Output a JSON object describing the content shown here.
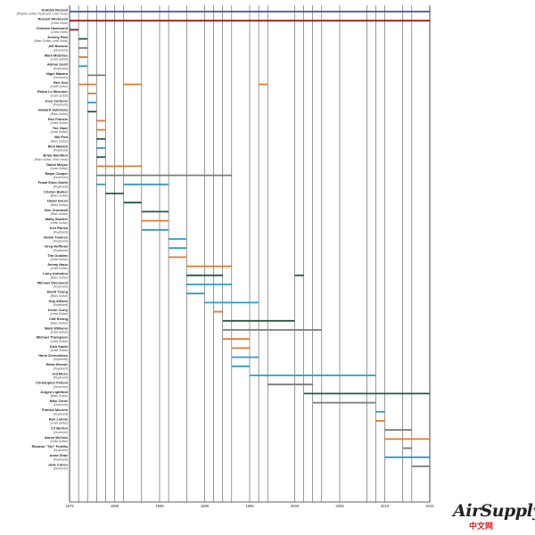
{
  "chart_data": {
    "type": "timeline",
    "x_range": [
      1975,
      2015
    ],
    "x_ticks": [
      "1975",
      "1980",
      "1985",
      "1990",
      "1995",
      "2000",
      "2005",
      "2010",
      "2015"
    ],
    "members": [
      {
        "name": "Graham Russell",
        "role": "(Rhythm Guitar, Keyboard, Lead Vocal)",
        "color": "#3a56a8",
        "spans": [
          [
            1975,
            2015
          ]
        ]
      },
      {
        "name": "Russell Hitchcock",
        "role": "(Lead Vocal)",
        "color": "#9b1b1b",
        "spans": [
          [
            1975,
            2015
          ]
        ]
      },
      {
        "name": "Chrissie Hammond",
        "role": "(Lead Vocal)",
        "color": "#9b1b1b",
        "spans": [
          [
            1975,
            1976
          ]
        ]
      },
      {
        "name": "Jeremy Paul",
        "role": "(Bass Guitar, Lead Vocal)",
        "color": "#1f5c3e",
        "spans": [
          [
            1976,
            1977
          ]
        ]
      },
      {
        "name": "Jeff Browne",
        "role": "(Drummer)",
        "color": "#7a7a7a",
        "spans": [
          [
            1976,
            1977
          ]
        ]
      },
      {
        "name": "Mark McEntee",
        "role": "(Lead Guitar)",
        "color": "#e07a2e",
        "spans": [
          [
            1976,
            1977
          ]
        ]
      },
      {
        "name": "Adrian Scott",
        "role": "(Keyboard)",
        "color": "#2f9ac9",
        "spans": [
          [
            1976,
            1977
          ]
        ]
      },
      {
        "name": "Nigel Macara",
        "role": "(Drummer)",
        "color": "#7a7a7a",
        "spans": [
          [
            1977,
            1979
          ]
        ]
      },
      {
        "name": "Rex Goh",
        "role": "(Lead Guitar)",
        "color": "#e07a2e",
        "spans": [
          [
            1976,
            1978
          ],
          [
            1981,
            1983
          ],
          [
            1996,
            1997
          ]
        ]
      },
      {
        "name": "Robin Le Mesurier",
        "role": "(Lead Guitar)",
        "color": "#e07a2e",
        "spans": [
          [
            1977,
            1978
          ]
        ]
      },
      {
        "name": "Joey Carbone",
        "role": "(Keyboard)",
        "color": "#2f9ac9",
        "spans": [
          [
            1977,
            1978
          ]
        ]
      },
      {
        "name": "Howard Sukimoto",
        "role": "(Bass Guitar)",
        "color": "#1f5c3e",
        "spans": [
          [
            1977,
            1978
          ]
        ]
      },
      {
        "name": "Rex Francis",
        "role": "(Lead Guitar)",
        "color": "#e07a2e",
        "spans": [
          [
            1978,
            1979
          ]
        ]
      },
      {
        "name": "Tim Gaze",
        "role": "(Lead Guitar)",
        "color": "#e07a2e",
        "spans": [
          [
            1978,
            1979
          ]
        ]
      },
      {
        "name": "Bill Putt",
        "role": "(Bass Guitar)",
        "color": "#1f5c3e",
        "spans": [
          [
            1978,
            1979
          ]
        ]
      },
      {
        "name": "Rick Mallick",
        "role": "(Keyboard)",
        "color": "#2f9ac9",
        "spans": [
          [
            1978,
            1979
          ]
        ]
      },
      {
        "name": "Brian Hamilton",
        "role": "(Bass Guitar, Lead Vocal)",
        "color": "#1f5c3e",
        "spans": [
          [
            1978,
            1979
          ]
        ]
      },
      {
        "name": "David Moyse",
        "role": "(Lead Guitar)",
        "color": "#e07a2e",
        "spans": [
          [
            1978,
            1983
          ]
        ]
      },
      {
        "name": "Ralph Cooper",
        "role": "(Drummer)",
        "color": "#7a7a7a",
        "spans": [
          [
            1978,
            1993
          ]
        ]
      },
      {
        "name": "Frank Esler-Smith",
        "role": "(Keyboard)",
        "color": "#2f9ac9",
        "spans": [
          [
            1978,
            1979
          ],
          [
            1981,
            1986
          ]
        ]
      },
      {
        "name": "Criston Barker",
        "role": "(Bass Guitar)",
        "color": "#1f5c3e",
        "spans": [
          [
            1979,
            1981
          ]
        ]
      },
      {
        "name": "David Green",
        "role": "(Bass Guitar)",
        "color": "#1f5c3e",
        "spans": [
          [
            1981,
            1983
          ]
        ]
      },
      {
        "name": "Don Cromwell",
        "role": "(Bass Guitar)",
        "color": "#1f5c3e",
        "spans": [
          [
            1983,
            1986
          ]
        ]
      },
      {
        "name": "Wally Stocker",
        "role": "(Lead Guitar)",
        "color": "#e07a2e",
        "spans": [
          [
            1983,
            1986
          ]
        ]
      },
      {
        "name": "Ken Rarick",
        "role": "(Keyboard)",
        "color": "#2f9ac9",
        "spans": [
          [
            1983,
            1986
          ]
        ]
      },
      {
        "name": "Robin Tuemen",
        "role": "(Keyboard)",
        "color": "#2f9ac9",
        "spans": [
          [
            1986,
            1988
          ]
        ]
      },
      {
        "name": "Greg Hoffman",
        "role": "(Keyboard)",
        "color": "#2f9ac9",
        "spans": [
          [
            1986,
            1988
          ]
        ]
      },
      {
        "name": "Tim Goddim",
        "role": "(Lead Guitar)",
        "color": "#e07a2e",
        "spans": [
          [
            1986,
            1988
          ]
        ]
      },
      {
        "name": "Jimmy Haun",
        "role": "(Lead Guitar)",
        "color": "#e07a2e",
        "spans": [
          [
            1988,
            1993
          ]
        ]
      },
      {
        "name": "Larry Antonino",
        "role": "(Bass Guitar)",
        "color": "#1f5c3e",
        "spans": [
          [
            1988,
            1992
          ],
          [
            2000,
            2001
          ]
        ]
      },
      {
        "name": "Michael Sherwood",
        "role": "(Keyboard)",
        "color": "#2f9ac9",
        "spans": [
          [
            1988,
            1993
          ]
        ]
      },
      {
        "name": "David Young",
        "role": "(Bass Guitar)",
        "color": "#2f9ac9",
        "spans": [
          [
            1988,
            1990
          ]
        ]
      },
      {
        "name": "Guy Allison",
        "role": "(Keyboard)",
        "color": "#2f9ac9",
        "spans": [
          [
            1990,
            1996
          ]
        ]
      },
      {
        "name": "Kevin Curry",
        "role": "(Lead Guitar)",
        "color": "#e07a2e",
        "spans": [
          [
            1991,
            1992
          ]
        ]
      },
      {
        "name": "Cliff Rehrig",
        "role": "(Bass Guitar)",
        "color": "#1f5c3e",
        "spans": [
          [
            1992,
            2000
          ]
        ]
      },
      {
        "name": "Mark Williams",
        "role": "(Lead Guitar)",
        "color": "#7a7a7a",
        "spans": [
          [
            1992,
            2003
          ]
        ]
      },
      {
        "name": "Michael Thompson",
        "role": "(Lead Guitar)",
        "color": "#e07a2e",
        "spans": [
          [
            1992,
            1995
          ]
        ]
      },
      {
        "name": "Dick Smith",
        "role": "(Lead Guitar)",
        "color": "#e07a2e",
        "spans": [
          [
            1993,
            1995
          ]
        ]
      },
      {
        "name": "Hans Zermuehlen",
        "role": "(Keyboard)",
        "color": "#2f9ac9",
        "spans": [
          [
            1993,
            1996
          ]
        ]
      },
      {
        "name": "Brian Becvar",
        "role": "(Keyboard)",
        "color": "#2f9ac9",
        "spans": [
          [
            1993,
            1995
          ]
        ]
      },
      {
        "name": "Jed Moss",
        "role": "(Keyboard)",
        "color": "#2f9ac9",
        "spans": [
          [
            1995,
            2009
          ]
        ]
      },
      {
        "name": "Christopher Pelloni",
        "role": "(Drummer)",
        "color": "#7a7a7a",
        "spans": [
          [
            1997,
            2002
          ]
        ]
      },
      {
        "name": "Jorgen Lightfoot",
        "role": "(Bass Guitar)",
        "color": "#1f5c3e",
        "spans": [
          [
            2001,
            2010
          ],
          [
            2010,
            2015
          ]
        ]
      },
      {
        "name": "Mike Zerbe",
        "role": "(Drummer)",
        "color": "#7a7a7a",
        "spans": [
          [
            2002,
            2009
          ]
        ]
      },
      {
        "name": "Frankie Moreno",
        "role": "(Keyboard)",
        "color": "#2f9ac9",
        "spans": [
          [
            2009,
            2010
          ]
        ]
      },
      {
        "name": "Ron Lehnie",
        "role": "(Lead Guitar)",
        "color": "#e07a2e",
        "spans": [
          [
            2009,
            2010
          ]
        ]
      },
      {
        "name": "CJ Burton",
        "role": "(Drummer)",
        "color": "#7a7a7a",
        "spans": [
          [
            2010,
            2013
          ]
        ]
      },
      {
        "name": "Aaron McCain",
        "role": "(Lead Guitar)",
        "color": "#e07a2e",
        "spans": [
          [
            2010,
            2015
          ]
        ]
      },
      {
        "name": "Ricardo \"Tiki\" Portillo",
        "role": "(Drummer)",
        "color": "#7a7a7a",
        "spans": [
          [
            2012,
            2013
          ]
        ]
      },
      {
        "name": "Anna Ghaz",
        "role": "(Keyboard)",
        "color": "#2f9ac9",
        "spans": [
          [
            2010,
            2015
          ]
        ]
      },
      {
        "name": "Jude Cohen",
        "role": "(Drummer)",
        "color": "#7a7a7a",
        "spans": [
          [
            2013,
            2015
          ]
        ]
      }
    ],
    "grid_years": [
      1976,
      1977,
      1978,
      1979,
      1981,
      1983,
      1986,
      1988,
      1990,
      1991,
      1992,
      1993,
      1995,
      1996,
      1997,
      2001,
      2002,
      2003,
      2008,
      2009,
      2010,
      2012,
      2013
    ],
    "grid": true,
    "legend": "none"
  },
  "logo": {
    "brand": "AirSupply",
    "sub": "中文网"
  }
}
